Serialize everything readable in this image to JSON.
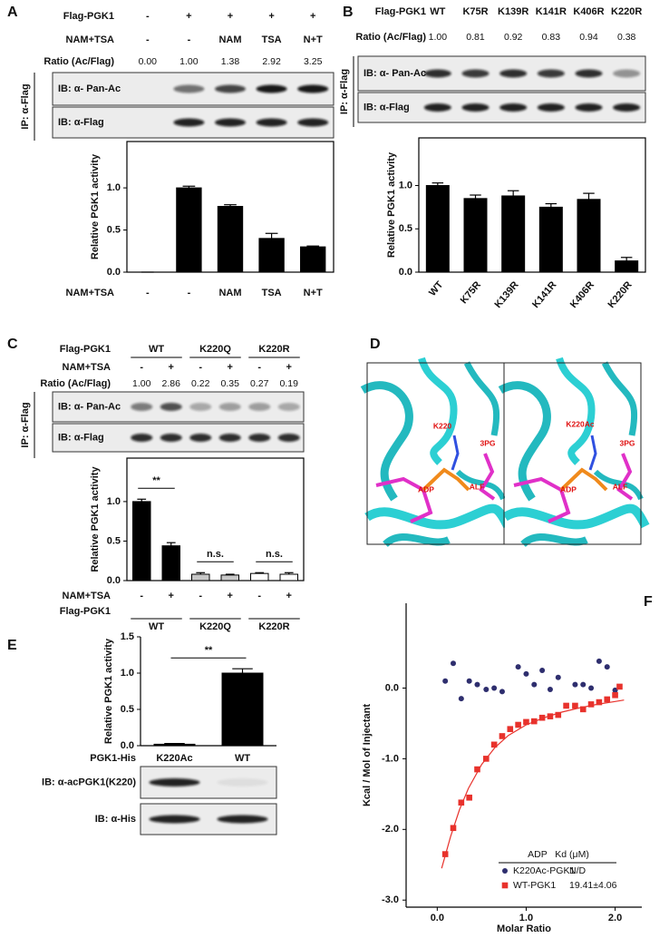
{
  "panels": {
    "a": {
      "label": "A",
      "rows": [
        {
          "label": "Flag-PGK1",
          "cells": [
            "-",
            "+",
            "+",
            "+",
            "+"
          ]
        },
        {
          "label": "NAM+TSA",
          "cells": [
            "-",
            "-",
            "NAM",
            "TSA",
            "N+T"
          ]
        },
        {
          "label": "Ratio (Ac/Flag)",
          "cells": [
            "0.00",
            "1.00",
            "1.38",
            "2.92",
            "3.25"
          ]
        }
      ],
      "ip": "IP: α-Flag",
      "blots": [
        "IB: α- Pan-Ac",
        "IB: α-Flag"
      ]
    },
    "b": {
      "label": "B",
      "rows": [
        {
          "label": "Flag-PGK1",
          "cells": [
            "WT",
            "K75R",
            "K139R",
            "K141R",
            "K406R",
            "K220R"
          ]
        },
        {
          "label": "Ratio (Ac/Flag)",
          "cells": [
            "1.00",
            "0.81",
            "0.92",
            "0.83",
            "0.94",
            "0.38"
          ]
        }
      ],
      "ip": "IP: α-Flag",
      "blots": [
        "IB: α- Pan-Ac",
        "IB: α-Flag"
      ]
    },
    "c": {
      "label": "C",
      "rows": [
        {
          "label": "Flag-PGK1",
          "cells": [
            "WT",
            "K220Q",
            "K220R"
          ]
        },
        {
          "label": "NAM+TSA",
          "cells": [
            "-",
            "+",
            "-",
            "+",
            "-",
            "+"
          ]
        },
        {
          "label": "Ratio (Ac/Flag)",
          "cells": [
            "1.00",
            "2.86",
            "0.22",
            "0.35",
            "0.27",
            "0.19"
          ]
        }
      ],
      "ip": "IP: α-Flag",
      "blots": [
        "IB: α- Pan-Ac",
        "IB: α-Flag"
      ]
    },
    "d": {
      "label": "D",
      "left": [
        "K220",
        "ADP",
        "ALF",
        "3PG"
      ],
      "right": [
        "K220Ac",
        "ADP",
        "3PG",
        "ALF"
      ]
    },
    "e": {
      "label": "E",
      "blots": [
        "IB: α-acPGK1(K220)",
        "IB: α-His"
      ]
    },
    "f": {
      "label": "F"
    }
  },
  "chart_data": [
    {
      "type": "bar",
      "y_label": "Relative PGK1 activity",
      "x_label": "NAM+TSA",
      "categories": [
        "-",
        "-",
        "NAM",
        "TSA",
        "N+T"
      ],
      "values": [
        0,
        1.0,
        0.78,
        0.4,
        0.3
      ],
      "errors": [
        0,
        0.02,
        0.02,
        0.06,
        0.01
      ],
      "color": "#000000",
      "ylim": [
        0,
        1.55
      ],
      "yticks": [
        {
          "value": 0,
          "label": "0.0"
        },
        0.5,
        {
          "value": 1,
          "label": "1.0"
        }
      ]
    },
    {
      "type": "bar",
      "y_label": "Relative PGK1 activity",
      "categories": [
        "WT",
        "K75R",
        "K139R",
        "K141R",
        "K406R",
        "K220R"
      ],
      "values": [
        1.0,
        0.85,
        0.88,
        0.75,
        0.84,
        0.13
      ],
      "errors": [
        0.03,
        0.04,
        0.06,
        0.04,
        0.07,
        0.04
      ],
      "color": "#000000",
      "ylim": [
        0,
        1.55
      ],
      "yticks": [
        {
          "value": 0,
          "label": "0.0"
        },
        0.5,
        {
          "value": 1,
          "label": "1.0"
        }
      ]
    },
    {
      "type": "bar",
      "y_label": "Relative PGK1 activity",
      "x_label": "NAM+TSA",
      "group_label": "Flag-PGK1",
      "groups": [
        "WT",
        "K220Q",
        "K220R"
      ],
      "categories": [
        "-",
        "+",
        "-",
        "+",
        "-",
        "+"
      ],
      "values": [
        1.0,
        0.44,
        0.08,
        0.07,
        0.09,
        0.08
      ],
      "errors": [
        0.03,
        0.04,
        0.02,
        0.01,
        0.01,
        0.02
      ],
      "colors": [
        "#000000",
        "#000000",
        "#c8c8c8",
        "#c8c8c8",
        "#ffffff",
        "#ffffff"
      ],
      "ylim": [
        0,
        1.55
      ],
      "yticks": [
        {
          "value": 0,
          "label": "0.0"
        },
        0.5,
        {
          "value": 1,
          "label": "1.0"
        }
      ],
      "annotations": [
        "**",
        "n.s.",
        "n.s."
      ]
    },
    {
      "type": "bar",
      "y_label": "Relative PGK1 activity",
      "x_label": "PGK1-His",
      "categories": [
        "K220Ac",
        "WT"
      ],
      "values": [
        0.02,
        1.0
      ],
      "errors": [
        0.01,
        0.06
      ],
      "color": "#000000",
      "ylim": [
        0,
        1.5
      ],
      "yticks": [
        {
          "value": 0,
          "label": "0.0"
        },
        0.5,
        {
          "value": 1,
          "label": "1.0"
        },
        1.5
      ],
      "annotations": [
        "**"
      ]
    },
    {
      "type": "scatter",
      "x_label": "Molar Ratio",
      "y_label": "Kcal / Mol of Injectant",
      "xlim": [
        -0.35,
        2.3
      ],
      "ylim": [
        -3.1,
        1.2
      ],
      "xticks": [
        {
          "value": 0,
          "label": "0.0"
        },
        {
          "value": 1,
          "label": "1.0"
        },
        {
          "value": 2,
          "label": "2.0"
        }
      ],
      "yticks": [
        {
          "value": 0,
          "label": "0.0"
        },
        {
          "value": -1,
          "label": "-1.0"
        },
        {
          "value": -2,
          "label": "-2.0"
        },
        {
          "value": -3,
          "label": "-3.0"
        }
      ],
      "legend_header": "ADP   Kd (μM)",
      "series": [
        {
          "name": "K220Ac-PGK1",
          "kd": "N/D",
          "marker": "circle",
          "color": "#2e2e6e",
          "x": [
            0.09,
            0.18,
            0.27,
            0.36,
            0.45,
            0.55,
            0.64,
            0.73,
            0.91,
            1.0,
            1.09,
            1.18,
            1.27,
            1.36,
            1.55,
            1.64,
            1.73,
            1.82,
            1.91,
            2.0
          ],
          "values": [
            0.1,
            0.35,
            -0.15,
            0.1,
            0.05,
            -0.02,
            0.0,
            -0.05,
            0.3,
            0.2,
            0.05,
            0.25,
            -0.02,
            0.15,
            0.05,
            0.05,
            0.0,
            0.38,
            0.3,
            -0.03
          ]
        },
        {
          "name": "WT-PGK1",
          "kd": "19.41±4.06",
          "marker": "square",
          "color": "#e8322c",
          "x": [
            0.09,
            0.18,
            0.27,
            0.36,
            0.45,
            0.55,
            0.64,
            0.73,
            0.82,
            0.91,
            1.0,
            1.09,
            1.18,
            1.27,
            1.36,
            1.45,
            1.55,
            1.64,
            1.73,
            1.82,
            1.91,
            2.0,
            2.05
          ],
          "values": [
            -2.35,
            -1.98,
            -1.62,
            -1.55,
            -1.15,
            -1.0,
            -0.8,
            -0.68,
            -0.58,
            -0.52,
            -0.48,
            -0.47,
            -0.42,
            -0.4,
            -0.38,
            -0.25,
            -0.25,
            -0.3,
            -0.23,
            -0.2,
            -0.16,
            -0.1,
            0.02
          ]
        }
      ],
      "fit": {
        "color": "#e8322c",
        "x": [
          0.05,
          0.15,
          0.25,
          0.35,
          0.5,
          0.65,
          0.8,
          1.0,
          1.2,
          1.4,
          1.6,
          1.8,
          2.0,
          2.1
        ],
        "values": [
          -2.55,
          -2.1,
          -1.72,
          -1.42,
          -1.08,
          -0.84,
          -0.67,
          -0.52,
          -0.42,
          -0.34,
          -0.28,
          -0.23,
          -0.19,
          -0.17
        ]
      }
    }
  ]
}
